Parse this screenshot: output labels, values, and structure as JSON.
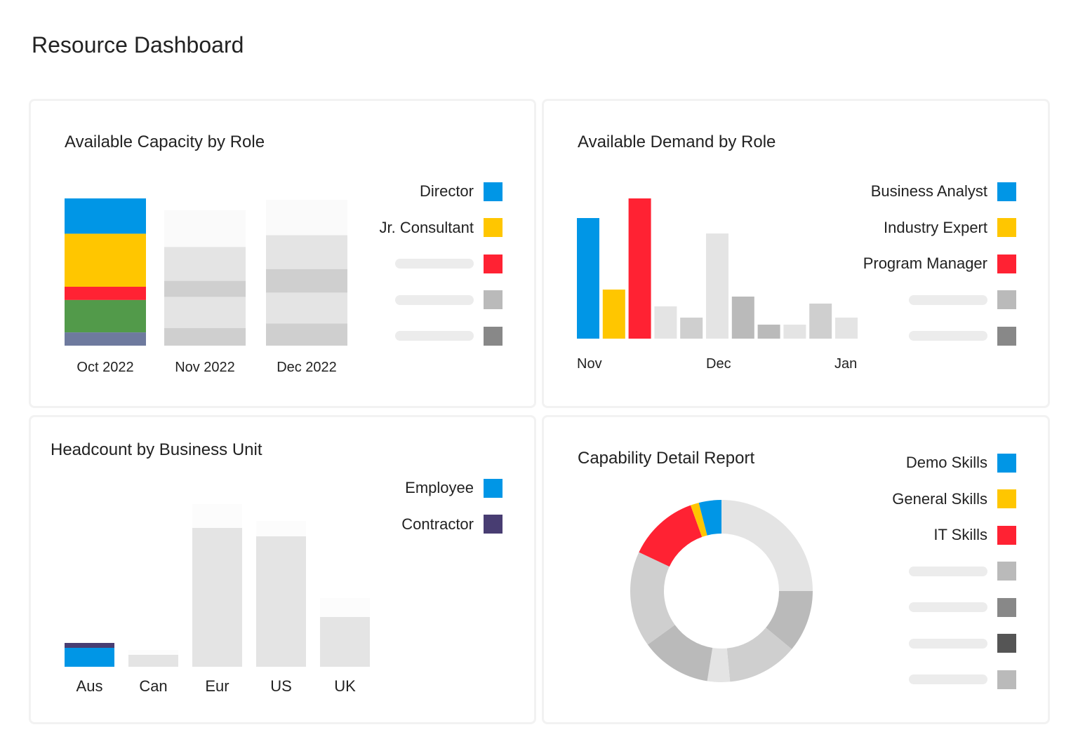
{
  "page": {
    "title": "Resource Dashboard"
  },
  "colors": {
    "blue": "#0096e6",
    "yellow": "#ffc600",
    "red": "#ff2233",
    "green": "#529a4a",
    "slate": "#6e7a9e",
    "navy": "#483d72"
  },
  "chart_data": [
    {
      "type": "bar",
      "stacked": true,
      "title": "Available Capacity by Role",
      "categories": [
        "Oct 2022",
        "Nov 2022",
        "Dec 2022"
      ],
      "legend": [
        {
          "name": "Director",
          "color": "#0096e6"
        },
        {
          "name": "Jr. Consultant",
          "color": "#ffc600"
        },
        {
          "name": "",
          "color": "#ff2233"
        },
        {
          "name": "",
          "color": "#bababa"
        },
        {
          "name": "",
          "color": "#888888"
        }
      ],
      "bars": [
        {
          "segments_top_to_bottom": [
            {
              "value": 24,
              "color": "#0096e6"
            },
            {
              "value": 36,
              "color": "#ffc600"
            },
            {
              "value": 9,
              "color": "#ff2233"
            },
            {
              "value": 22,
              "color": "#529a4a"
            },
            {
              "value": 9,
              "color": "#6e7a9e"
            }
          ]
        },
        {
          "segments_top_to_bottom": [
            {
              "value": 25,
              "color": "#fafafa"
            },
            {
              "value": 23,
              "color": "#e4e4e4"
            },
            {
              "value": 11,
              "color": "#cfcfcf"
            },
            {
              "value": 21,
              "color": "#e4e4e4"
            },
            {
              "value": 12,
              "color": "#cfcfcf"
            }
          ]
        },
        {
          "segments_top_to_bottom": [
            {
              "value": 24,
              "color": "#fafafa"
            },
            {
              "value": 23,
              "color": "#e4e4e4"
            },
            {
              "value": 16,
              "color": "#cfcfcf"
            },
            {
              "value": 21,
              "color": "#e4e4e4"
            },
            {
              "value": 15,
              "color": "#cfcfcf"
            }
          ]
        }
      ],
      "ylim": [
        0,
        100
      ],
      "grid": false,
      "legend_placement": "right"
    },
    {
      "type": "bar",
      "title": "Available Demand by Role",
      "x_tick_labels": [
        "Nov",
        "Dec",
        "Jan"
      ],
      "legend": [
        {
          "name": "Business Analyst",
          "color": "#0096e6"
        },
        {
          "name": "Industry Expert",
          "color": "#ffc600"
        },
        {
          "name": "Program Manager",
          "color": "#ff2233"
        },
        {
          "name": "",
          "color": "#bababa"
        },
        {
          "name": "",
          "color": "#888888"
        }
      ],
      "bars": [
        {
          "value": 86,
          "color": "#0096e6"
        },
        {
          "value": 35,
          "color": "#ffc600"
        },
        {
          "value": 100,
          "color": "#ff2233"
        },
        {
          "value": 23,
          "color": "#e4e4e4"
        },
        {
          "value": 15,
          "color": "#cfcfcf"
        },
        {
          "value": 75,
          "color": "#e4e4e4"
        },
        {
          "value": 30,
          "color": "#bababa"
        },
        {
          "value": 10,
          "color": "#bababa"
        },
        {
          "value": 10,
          "color": "#e4e4e4"
        },
        {
          "value": 25,
          "color": "#cfcfcf"
        },
        {
          "value": 15,
          "color": "#e4e4e4"
        }
      ],
      "ylim": [
        0,
        100
      ],
      "grid": false,
      "legend_placement": "right"
    },
    {
      "type": "bar",
      "stacked": true,
      "title": "Headcount by Business Unit",
      "categories": [
        "Aus",
        "Can",
        "Eur",
        "US",
        "UK"
      ],
      "legend": [
        {
          "name": "Employee",
          "color": "#0096e6"
        },
        {
          "name": "Contractor",
          "color": "#483d72"
        }
      ],
      "bars": [
        {
          "segments_bottom_to_top": [
            {
              "value": 13.5,
              "color": "#0096e6"
            },
            {
              "value": 3.5,
              "color": "#483d72"
            }
          ]
        },
        {
          "segments_bottom_to_top": [
            {
              "value": 8.5,
              "color": "#e4e4e4"
            },
            {
              "value": 3.5,
              "color": "#fcfcfc"
            }
          ]
        },
        {
          "segments_bottom_to_top": [
            {
              "value": 99,
              "color": "#e4e4e4"
            },
            {
              "value": 17,
              "color": "#fcfcfc"
            }
          ]
        },
        {
          "segments_bottom_to_top": [
            {
              "value": 93,
              "color": "#e4e4e4"
            },
            {
              "value": 11,
              "color": "#fcfcfc"
            }
          ]
        },
        {
          "segments_bottom_to_top": [
            {
              "value": 35.5,
              "color": "#e4e4e4"
            },
            {
              "value": 13.5,
              "color": "#fcfcfc"
            }
          ]
        }
      ],
      "ylim": [
        0,
        116
      ],
      "grid": false,
      "legend_placement": "top-right"
    },
    {
      "type": "pie",
      "donut": true,
      "title": "Capability Detail Report",
      "legend": [
        {
          "name": "Demo Skills",
          "color": "#0096e6"
        },
        {
          "name": "General Skills",
          "color": "#ffc600"
        },
        {
          "name": "IT Skills",
          "color": "#ff2233"
        },
        {
          "name": "",
          "color": "#bababa"
        },
        {
          "name": "",
          "color": "#888888"
        },
        {
          "name": "",
          "color": "#555555"
        },
        {
          "name": "",
          "color": "#bababa"
        }
      ],
      "slices_clockwise_from_top": [
        {
          "value": 25,
          "color": "#e4e4e4"
        },
        {
          "value": 11,
          "color": "#bababa"
        },
        {
          "value": 12.5,
          "color": "#cfcfcf"
        },
        {
          "value": 4,
          "color": "#e4e4e4"
        },
        {
          "value": 12.5,
          "color": "#bababa"
        },
        {
          "value": 17,
          "color": "#cfcfcf"
        },
        {
          "value": 12.5,
          "color": "#ff2233"
        },
        {
          "value": 1.5,
          "color": "#ffc600"
        },
        {
          "value": 4,
          "color": "#0096e6"
        }
      ],
      "legend_placement": "right"
    }
  ]
}
